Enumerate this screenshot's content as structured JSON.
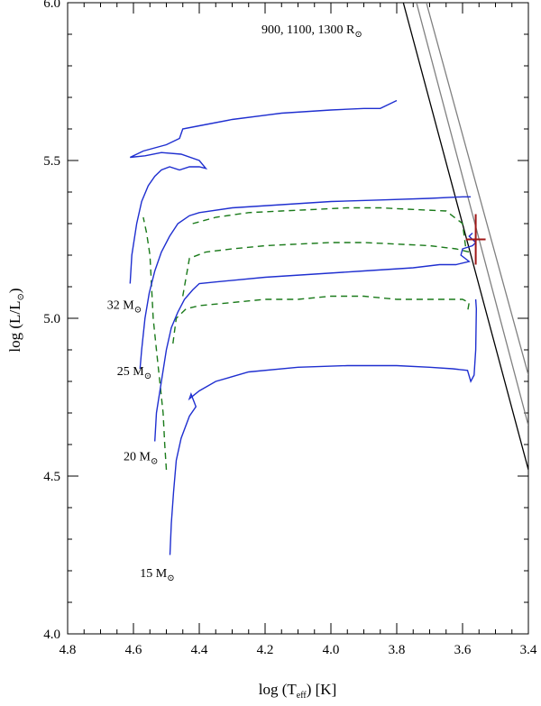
{
  "chart_data": {
    "type": "line",
    "title": "",
    "xlabel": {
      "main": "log (T",
      "sub": "eff",
      "tail": ") [K]"
    },
    "ylabel": {
      "main": "log (L/L",
      "sub": "⊙",
      "tail": ")"
    },
    "xlim": [
      4.8,
      3.4
    ],
    "ylim": [
      4.0,
      6.0
    ],
    "x_ticks": [
      {
        "value": 4.8,
        "label": "4.8"
      },
      {
        "value": 4.6,
        "label": "4.6"
      },
      {
        "value": 4.4,
        "label": "4.4"
      },
      {
        "value": 4.2,
        "label": "4.2"
      },
      {
        "value": 4.0,
        "label": "4.0"
      },
      {
        "value": 3.8,
        "label": "3.8"
      },
      {
        "value": 3.6,
        "label": "3.6"
      },
      {
        "value": 3.4,
        "label": "3.4"
      }
    ],
    "y_ticks": [
      {
        "value": 4.0,
        "label": "4.0"
      },
      {
        "value": 4.5,
        "label": "4.5"
      },
      {
        "value": 5.0,
        "label": "5.0"
      },
      {
        "value": 5.5,
        "label": "5.5"
      },
      {
        "value": 6.0,
        "label": "6.0"
      }
    ],
    "colors": {
      "track": "#1f2fd0",
      "dashed": "#1a7a1a",
      "radius_first": "#000000",
      "radius_other": "#808080",
      "star": "#a01818"
    },
    "radius_annotation": {
      "main": "900, 1100, 1300 R",
      "sub": "⊙"
    },
    "radius_lines": [
      {
        "radius": 900,
        "x": [
          3.78,
          3.4
        ],
        "y": [
          6.0,
          4.52
        ]
      },
      {
        "radius": 1100,
        "x": [
          3.74,
          3.4
        ],
        "y": [
          6.0,
          4.66
        ]
      },
      {
        "radius": 1300,
        "x": [
          3.71,
          3.4
        ],
        "y": [
          6.0,
          4.82
        ]
      }
    ],
    "series": [
      {
        "name": "15 M⊙",
        "label": {
          "main": "15 M",
          "sub": "⊙",
          "x": 4.58,
          "y": 4.18
        },
        "points": [
          [
            4.489,
            4.25
          ],
          [
            4.485,
            4.35
          ],
          [
            4.478,
            4.45
          ],
          [
            4.47,
            4.55
          ],
          [
            4.455,
            4.62
          ],
          [
            4.43,
            4.69
          ],
          [
            4.41,
            4.72
          ],
          [
            4.425,
            4.76
          ],
          [
            4.43,
            4.745
          ],
          [
            4.4,
            4.77
          ],
          [
            4.35,
            4.8
          ],
          [
            4.25,
            4.83
          ],
          [
            4.1,
            4.845
          ],
          [
            3.95,
            4.85
          ],
          [
            3.8,
            4.85
          ],
          [
            3.7,
            4.845
          ],
          [
            3.63,
            4.84
          ],
          [
            3.585,
            4.835
          ],
          [
            3.575,
            4.8
          ],
          [
            3.565,
            4.82
          ],
          [
            3.56,
            4.9
          ],
          [
            3.558,
            5.03
          ],
          [
            3.56,
            5.06
          ]
        ]
      },
      {
        "name": "20 M⊙",
        "label": {
          "main": "20 M",
          "sub": "⊙",
          "x": 4.63,
          "y": 4.55
        },
        "points": [
          [
            4.535,
            4.61
          ],
          [
            4.53,
            4.7
          ],
          [
            4.515,
            4.8
          ],
          [
            4.5,
            4.9
          ],
          [
            4.485,
            4.97
          ],
          [
            4.465,
            5.02
          ],
          [
            4.445,
            5.06
          ],
          [
            4.42,
            5.09
          ],
          [
            4.4,
            5.11
          ],
          [
            4.35,
            5.115
          ],
          [
            4.2,
            5.13
          ],
          [
            4.05,
            5.14
          ],
          [
            3.9,
            5.15
          ],
          [
            3.75,
            5.16
          ],
          [
            3.67,
            5.17
          ],
          [
            3.62,
            5.17
          ],
          [
            3.58,
            5.18
          ],
          [
            3.605,
            5.2
          ],
          [
            3.6,
            5.22
          ],
          [
            3.57,
            5.23
          ],
          [
            3.56,
            5.24
          ],
          [
            3.58,
            5.26
          ],
          [
            3.57,
            5.27
          ]
        ]
      },
      {
        "name": "25 M⊙",
        "label": {
          "main": "25 M",
          "sub": "⊙",
          "x": 4.65,
          "y": 4.82
        },
        "points": [
          [
            4.58,
            4.84
          ],
          [
            4.575,
            4.9
          ],
          [
            4.565,
            5.0
          ],
          [
            4.552,
            5.08
          ],
          [
            4.535,
            5.15
          ],
          [
            4.515,
            5.21
          ],
          [
            4.49,
            5.26
          ],
          [
            4.465,
            5.3
          ],
          [
            4.43,
            5.325
          ],
          [
            4.4,
            5.335
          ],
          [
            4.3,
            5.35
          ],
          [
            4.15,
            5.36
          ],
          [
            4.0,
            5.37
          ],
          [
            3.85,
            5.375
          ],
          [
            3.7,
            5.38
          ],
          [
            3.6,
            5.385
          ],
          [
            3.575,
            5.385
          ]
        ]
      },
      {
        "name": "32 M⊙",
        "label": {
          "main": "32 M",
          "sub": "⊙",
          "x": 4.68,
          "y": 5.03
        },
        "points": [
          [
            4.61,
            5.11
          ],
          [
            4.605,
            5.2
          ],
          [
            4.59,
            5.3
          ],
          [
            4.575,
            5.37
          ],
          [
            4.555,
            5.42
          ],
          [
            4.535,
            5.45
          ],
          [
            4.515,
            5.47
          ],
          [
            4.49,
            5.48
          ],
          [
            4.46,
            5.47
          ],
          [
            4.43,
            5.48
          ],
          [
            4.4,
            5.48
          ],
          [
            4.38,
            5.475
          ],
          [
            4.4,
            5.5
          ],
          [
            4.455,
            5.52
          ],
          [
            4.515,
            5.525
          ],
          [
            4.565,
            5.515
          ],
          [
            4.61,
            5.51
          ],
          [
            4.57,
            5.53
          ],
          [
            4.5,
            5.55
          ],
          [
            4.46,
            5.57
          ],
          [
            4.45,
            5.6
          ],
          [
            4.4,
            5.61
          ],
          [
            4.3,
            5.63
          ],
          [
            4.15,
            5.65
          ],
          [
            4.0,
            5.66
          ],
          [
            3.9,
            5.665
          ],
          [
            3.85,
            5.665
          ],
          [
            3.82,
            5.68
          ],
          [
            3.8,
            5.69
          ]
        ]
      }
    ],
    "dashed_series": [
      {
        "points": [
          [
            4.5,
            4.52
          ],
          [
            4.505,
            4.6
          ],
          [
            4.51,
            4.7
          ],
          [
            4.52,
            4.8
          ],
          [
            4.53,
            4.9
          ],
          [
            4.54,
            5.0
          ],
          [
            4.545,
            5.1
          ],
          [
            4.55,
            5.2
          ],
          [
            4.56,
            5.27
          ],
          [
            4.57,
            5.32
          ]
        ]
      },
      {
        "points": [
          [
            4.48,
            4.92
          ],
          [
            4.475,
            4.96
          ],
          [
            4.47,
            5.0
          ],
          [
            4.44,
            5.03
          ],
          [
            4.4,
            5.04
          ],
          [
            4.3,
            5.05
          ],
          [
            4.2,
            5.06
          ],
          [
            4.1,
            5.06
          ],
          [
            4.0,
            5.07
          ],
          [
            3.9,
            5.07
          ],
          [
            3.8,
            5.06
          ],
          [
            3.7,
            5.06
          ],
          [
            3.6,
            5.06
          ],
          [
            3.58,
            5.05
          ],
          [
            3.585,
            5.02
          ]
        ]
      },
      {
        "points": [
          [
            4.45,
            5.07
          ],
          [
            4.44,
            5.13
          ],
          [
            4.43,
            5.19
          ],
          [
            4.38,
            5.21
          ],
          [
            4.3,
            5.22
          ],
          [
            4.2,
            5.23
          ],
          [
            4.1,
            5.235
          ],
          [
            4.0,
            5.24
          ],
          [
            3.9,
            5.24
          ],
          [
            3.8,
            5.235
          ],
          [
            3.7,
            5.23
          ],
          [
            3.62,
            5.22
          ],
          [
            3.58,
            5.21
          ]
        ]
      },
      {
        "points": [
          [
            4.42,
            5.3
          ],
          [
            4.35,
            5.32
          ],
          [
            4.25,
            5.335
          ],
          [
            4.15,
            5.34
          ],
          [
            4.05,
            5.345
          ],
          [
            3.95,
            5.35
          ],
          [
            3.85,
            5.35
          ],
          [
            3.75,
            5.345
          ],
          [
            3.65,
            5.34
          ],
          [
            3.6,
            5.3
          ],
          [
            3.59,
            5.22
          ]
        ]
      }
    ],
    "star_point": {
      "x": 3.56,
      "y": 5.25,
      "x_err": 0.03,
      "y_err": [
        5.17,
        5.33
      ]
    }
  }
}
